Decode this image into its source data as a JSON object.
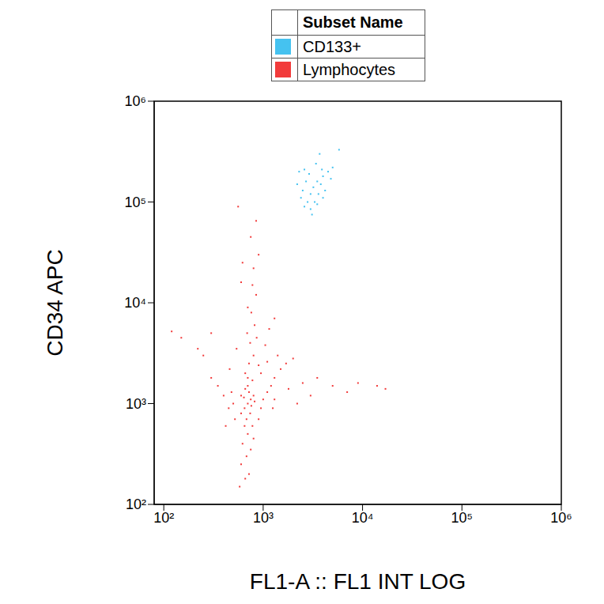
{
  "chart_data": {
    "type": "scatter",
    "x_label": "FL1-A :: FL1 INT LOG",
    "y_label": "CD34 APC",
    "legend_title": "Subset Name",
    "log": true,
    "grid": false,
    "xlim": [
      80,
      1000000
    ],
    "ylim": [
      100,
      1000000
    ],
    "xticks": [
      {
        "value": 100,
        "label": "10²"
      },
      {
        "value": 1000,
        "label": "10³"
      },
      {
        "value": 10000,
        "label": "10⁴"
      },
      {
        "value": 100000,
        "label": "10⁵"
      },
      {
        "value": 1000000,
        "label": "10⁶"
      }
    ],
    "yticks": [
      {
        "value": 100,
        "label": "10²"
      },
      {
        "value": 1000,
        "label": "10³"
      },
      {
        "value": 10000,
        "label": "10⁴"
      },
      {
        "value": 100000,
        "label": "10⁵"
      },
      {
        "value": 1000000,
        "label": "10⁶"
      }
    ],
    "series": [
      {
        "name": "CD133+",
        "color": "#45c2f0",
        "x": [
          3000,
          3200,
          2800,
          3500,
          2500,
          2600,
          4000,
          3800,
          2400,
          3000,
          4500,
          5000,
          3300,
          2700,
          2300,
          4200,
          3600,
          2900,
          3100,
          2600,
          4800,
          3400,
          3700,
          5800,
          3500,
          4000,
          2200,
          3900
        ],
        "values": [
          120000,
          140000,
          100000,
          160000,
          130000,
          90000,
          180000,
          150000,
          110000,
          85000,
          200000,
          220000,
          100000,
          160000,
          200000,
          130000,
          120000,
          190000,
          75000,
          210000,
          170000,
          240000,
          300000,
          330000,
          95000,
          110000,
          150000,
          210000
        ]
      },
      {
        "name": "Lymphocytes",
        "color": "#f23b3b",
        "x": [
          700,
          650,
          750,
          800,
          600,
          720,
          680,
          760,
          820,
          640,
          700,
          780,
          660,
          720,
          800,
          740,
          690,
          820,
          760,
          700,
          850,
          780,
          650,
          700,
          620,
          750,
          680,
          600,
          720,
          660,
          580,
          800,
          900,
          950,
          1000,
          1100,
          1200,
          1300,
          1500,
          1700,
          2000,
          1400,
          1100,
          950,
          1250,
          1800,
          2500,
          3500,
          5000,
          7000,
          9000,
          14000,
          17000,
          500,
          480,
          520,
          450,
          400,
          350,
          300,
          250,
          220,
          300,
          150,
          120,
          420,
          460,
          540,
          860,
          900,
          1050,
          1150,
          1300,
          600,
          800,
          900,
          750,
          620,
          850,
          560,
          1300,
          2200,
          3000,
          600,
          700,
          740,
          660,
          780
        ],
        "values": [
          1000,
          900,
          1100,
          1200,
          800,
          1300,
          700,
          950,
          1050,
          1150,
          1500,
          1700,
          2000,
          2500,
          3000,
          4000,
          5000,
          6000,
          8000,
          9000,
          12000,
          15000,
          600,
          500,
          400,
          350,
          300,
          250,
          200,
          180,
          150,
          450,
          700,
          900,
          1100,
          1300,
          1500,
          1800,
          2200,
          2500,
          2800,
          3000,
          2600,
          2000,
          900,
          1400,
          1600,
          1800,
          1500,
          1300,
          1600,
          1500,
          1400,
          1000,
          1300,
          700,
          900,
          1200,
          1500,
          1800,
          3000,
          3500,
          5000,
          4500,
          5200,
          600,
          2200,
          3500,
          4500,
          2400,
          3800,
          5500,
          7000,
          16000,
          22000,
          30000,
          45000,
          25000,
          65000,
          90000,
          1100,
          1000,
          1200,
          1200,
          1800,
          800,
          1400,
          600
        ]
      }
    ]
  }
}
